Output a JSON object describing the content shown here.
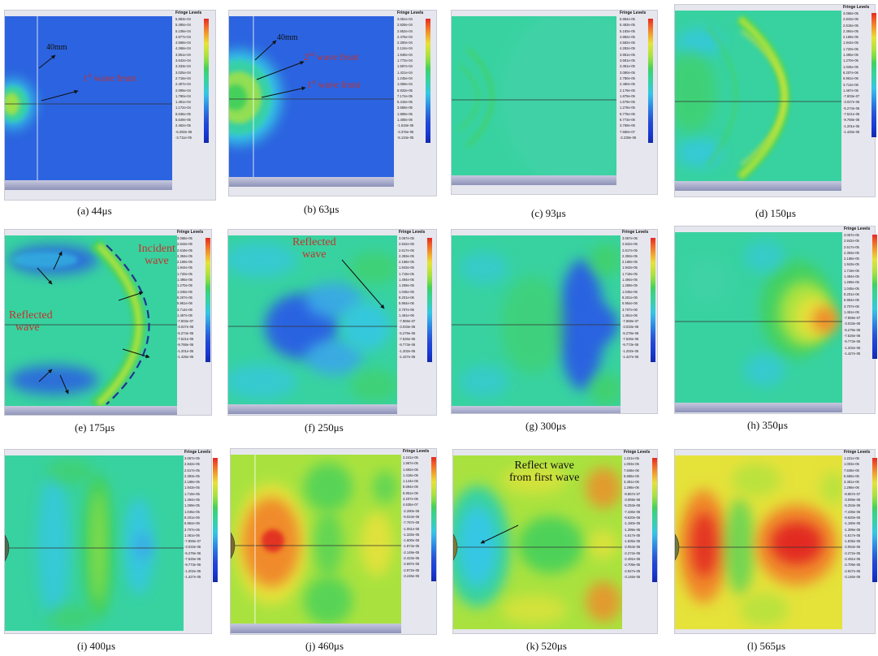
{
  "legend_title": "Fringe Levels",
  "panels": [
    {
      "caption": "(a) 44μs",
      "labels": [
        "5.883e-04",
        "5.495e-04",
        "5.108e-04",
        "4.877e-04",
        "4.568e-04",
        "4.268e-04",
        "3.951e-04",
        "3.642e-04",
        "3.333e-04",
        "3.025e-04",
        "2.716e-04",
        "2.407e-04",
        "2.099e-04",
        "1.790e-04",
        "1.481e-04",
        "1.172e-04",
        "8.636e-05",
        "5.549e-05",
        "2.462e-05",
        "-6.250e-06",
        "-3.711e-05"
      ]
    },
    {
      "caption": "(b) 63μs",
      "labels": [
        "3.061e-04",
        "2.828e-04",
        "2.652e-04",
        "2.476e-04",
        "2.300e-04",
        "2.124e-04",
        "1.948e-04",
        "1.772e-04",
        "1.597e-04",
        "1.421e-04",
        "1.245e-04",
        "1.069e-04",
        "8.933e-05",
        "7.174e-05",
        "5.416e-05",
        "3.658e-05",
        "1.899e-05",
        "1.408e-06",
        "-1.618e-05",
        "-3.376e-05",
        "-5.134e-05"
      ]
    },
    {
      "caption": "(c) 93μs",
      "labels": [
        "5.984e-05",
        "5.483e-05",
        "5.183e-05",
        "4.882e-05",
        "4.582e-05",
        "4.282e-05",
        "3.981e-05",
        "3.681e-05",
        "3.381e-05",
        "3.080e-05",
        "2.780e-05",
        "2.480e-05",
        "2.179e-05",
        "1.879e-05",
        "1.579e-05",
        "1.278e-05",
        "9.776e-06",
        "6.773e-06",
        "3.769e-06",
        "7.660e-07",
        "-2.238e-06"
      ]
    },
    {
      "caption": "(d) 150μs",
      "labels": [
        "3.068e-05",
        "2.843e-05",
        "2.618e-05",
        "2.394e-05",
        "2.169e-05",
        "1.944e-05",
        "1.720e-05",
        "1.495e-05",
        "1.270e-05",
        "1.045e-05",
        "8.207e-06",
        "5.961e-06",
        "3.714e-06",
        "1.467e-06",
        "-7.803e-07",
        "-3.027e-06",
        "-5.274e-06",
        "-7.521e-06",
        "-9.768e-06",
        "-1.201e-05",
        "-1.426e-05"
      ]
    },
    {
      "caption": "(e) 175μs",
      "labels": [
        "3.068e-05",
        "2.843e-05",
        "2.618e-05",
        "2.394e-05",
        "2.169e-05",
        "1.944e-05",
        "1.720e-05",
        "1.495e-05",
        "1.270e-05",
        "1.045e-05",
        "8.207e-06",
        "5.961e-06",
        "3.714e-06",
        "1.467e-06",
        "-7.803e-07",
        "-3.027e-06",
        "-5.274e-06",
        "-7.521e-06",
        "-9.768e-06",
        "-1.201e-05",
        "-1.426e-05"
      ]
    },
    {
      "caption": "(f) 250μs",
      "labels": [
        "3.067e-05",
        "2.842e-05",
        "2.617e-05",
        "2.393e-05",
        "2.168e-05",
        "1.943e-05",
        "1.719e-05",
        "1.494e-05",
        "1.269e-05",
        "1.045e-05",
        "8.201e-06",
        "5.954e-06",
        "3.707e-06",
        "1.461e-06",
        "-7.859e-07",
        "-3.033e-06",
        "-5.279e-06",
        "-7.526e-06",
        "-9.773e-06",
        "-1.202e-05",
        "-1.427e-05"
      ]
    },
    {
      "caption": "(g) 300μs",
      "labels": [
        "3.067e-05",
        "2.842e-05",
        "2.617e-05",
        "2.393e-05",
        "2.168e-05",
        "1.943e-05",
        "1.719e-05",
        "1.494e-05",
        "1.269e-05",
        "1.045e-05",
        "8.201e-06",
        "5.954e-06",
        "3.707e-06",
        "1.461e-06",
        "-7.859e-07",
        "-3.033e-06",
        "-5.279e-06",
        "-7.526e-06",
        "-9.773e-06",
        "-1.202e-05",
        "-1.427e-05"
      ]
    },
    {
      "caption": "(h) 350μs",
      "labels": [
        "3.067e-05",
        "2.842e-05",
        "2.617e-05",
        "2.393e-05",
        "2.168e-05",
        "1.943e-05",
        "1.719e-05",
        "1.494e-05",
        "1.269e-05",
        "1.045e-05",
        "8.201e-06",
        "5.954e-06",
        "3.707e-06",
        "1.461e-06",
        "-7.859e-07",
        "-3.033e-06",
        "-5.279e-06",
        "-7.526e-06",
        "-9.773e-06",
        "-1.202e-05",
        "-1.427e-05"
      ]
    },
    {
      "caption": "(i) 400μs",
      "labels": [
        "3.067e-05",
        "2.842e-05",
        "2.617e-05",
        "2.393e-05",
        "2.168e-05",
        "1.943e-05",
        "1.719e-05",
        "1.494e-05",
        "1.269e-05",
        "1.045e-05",
        "8.201e-06",
        "5.954e-06",
        "3.707e-06",
        "1.461e-06",
        "-7.859e-07",
        "-3.033e-06",
        "-5.279e-06",
        "-7.526e-06",
        "-9.773e-06",
        "-1.202e-05",
        "-1.427e-05"
      ]
    },
    {
      "caption": "(j) 460μs",
      "labels": [
        "2.241e-05",
        "1.967e-05",
        "1.692e-05",
        "1.418e-05",
        "1.144e-05",
        "8.694e-06",
        "5.951e-06",
        "3.207e-06",
        "4.635e-07",
        "-2.280e-06",
        "-5.024e-06",
        "-7.767e-06",
        "-1.051e-05",
        "-1.325e-05",
        "-1.600e-05",
        "-1.874e-05",
        "-2.149e-05",
        "-2.423e-05",
        "-2.697e-05",
        "-2.972e-05",
        "-3.246e-05"
      ]
    },
    {
      "caption": "(k) 520μs",
      "labels": [
        "1.221e-05",
        "1.003e-05",
        "7.848e-06",
        "5.665e-06",
        "3.481e-06",
        "1.298e-06",
        "-8.857e-07",
        "-3.069e-06",
        "-5.253e-06",
        "-7.436e-06",
        "-9.620e-06",
        "-1.180e-05",
        "-1.399e-05",
        "-1.617e-05",
        "-1.835e-05",
        "-2.054e-05",
        "-2.272e-05",
        "-2.491e-05",
        "-2.709e-05",
        "-2.927e-05",
        "-3.146e-05"
      ]
    },
    {
      "caption": "(l) 565μs",
      "labels": [
        "1.221e-05",
        "1.003e-05",
        "7.848e-06",
        "5.665e-06",
        "3.481e-06",
        "1.298e-06",
        "-8.857e-07",
        "-3.069e-06",
        "-5.253e-06",
        "-7.436e-06",
        "-9.620e-06",
        "-1.180e-05",
        "-1.399e-05",
        "-1.617e-05",
        "-1.835e-05",
        "-2.054e-05",
        "-2.272e-05",
        "-2.491e-05",
        "-2.709e-05",
        "-2.927e-05",
        "-3.146e-05"
      ]
    }
  ],
  "annotations": {
    "a_40mm": "40mm",
    "a_front": "wave front",
    "a_front_sup": "st",
    "a_front_num": "1",
    "b_40mm": "40mm",
    "b_front2_num": "2",
    "b_front2_sup": "nd",
    "b_front2": "wave front",
    "b_front1_num": "1",
    "b_front1_sup": "st",
    "b_front1": "wave front",
    "e_incident_1": "Incident",
    "e_incident_2": "wave",
    "e_reflected_1": "Reflected",
    "e_reflected_2": "wave",
    "f_reflected_1": "Reflected",
    "f_reflected_2": "wave",
    "k_reflect_1": "Reflect wave",
    "k_reflect_2": "from first wave"
  },
  "colors": {
    "deep_blue": "#1b3fd6",
    "field_blue": "#2c63e0",
    "cyan": "#35c7e3",
    "teal_green": "#38d2a0",
    "green": "#45d05c",
    "yellow_green": "#a9e23f",
    "yellow": "#e5e23a",
    "orange": "#f08a2a",
    "red": "#e22a22",
    "annotation_red": "#c4322b"
  }
}
